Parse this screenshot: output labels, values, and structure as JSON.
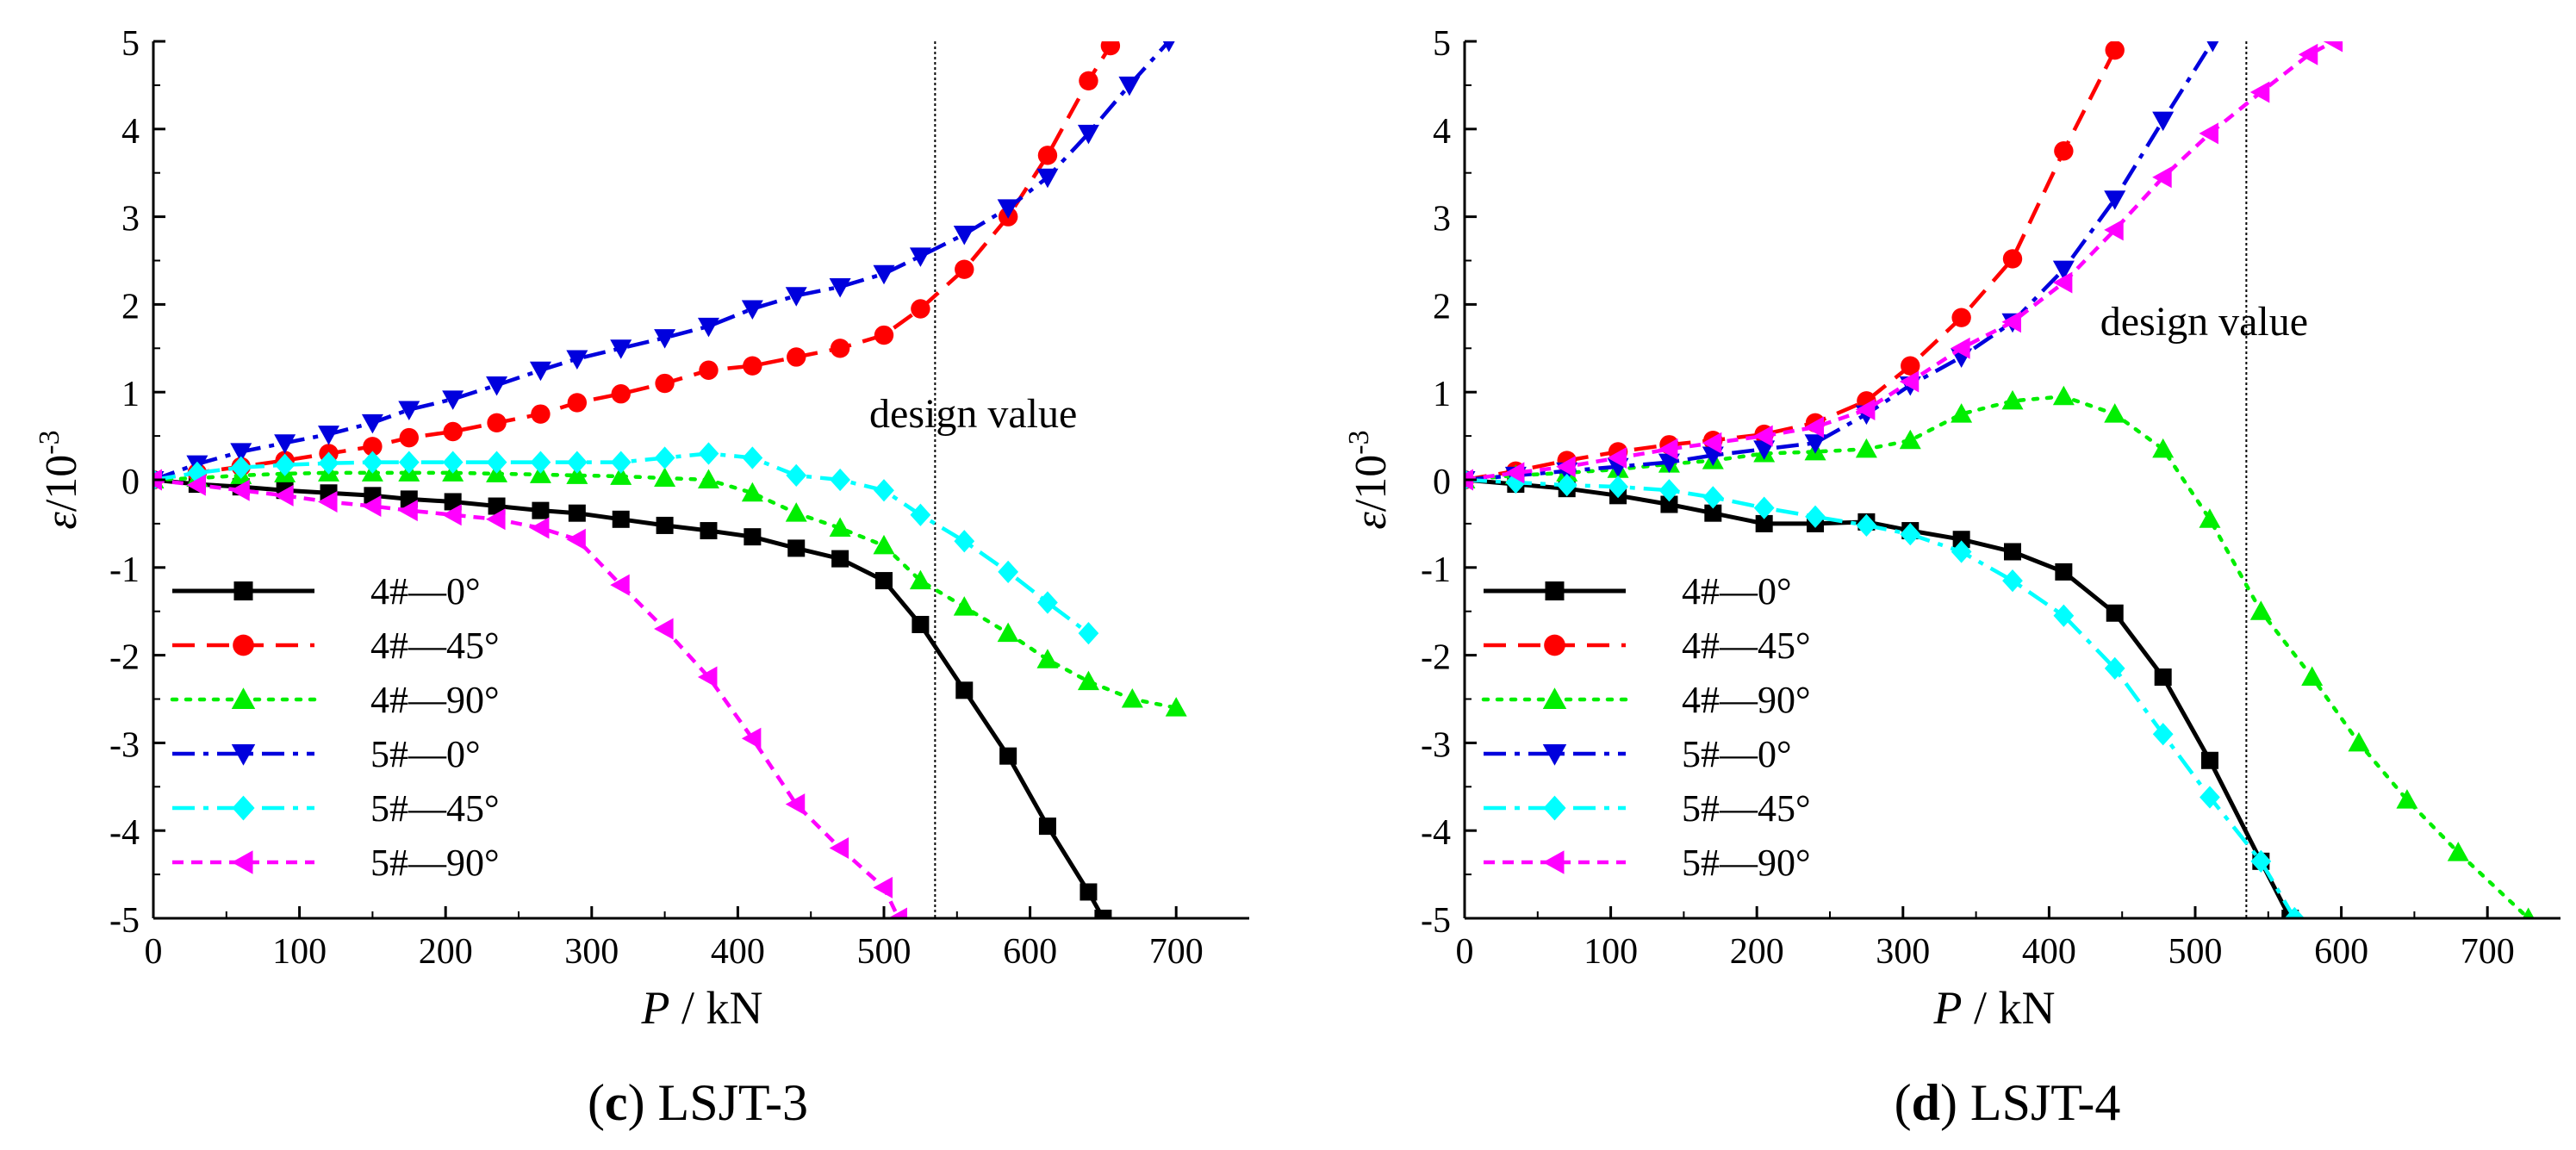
{
  "chart_data": [
    {
      "type": "line",
      "panel_letter": "c",
      "panel_name": "LSJT-3",
      "xlabel_italic": "P",
      "xlabel_unit": " / kN",
      "ylabel_symbol": "ε",
      "ylabel_unit": "/10",
      "ylabel_exp": "-3",
      "xlim": [
        0,
        750
      ],
      "ylim": [
        -5,
        5
      ],
      "x_ticks": [
        0,
        100,
        200,
        300,
        400,
        500,
        600,
        700
      ],
      "x_tick_labels": [
        "0",
        "100",
        "200",
        "300",
        "400",
        "500",
        "600",
        "700"
      ],
      "y_ticks": [
        -5,
        -4,
        -3,
        -2,
        -1,
        0,
        1,
        2,
        3,
        4,
        5
      ],
      "y_tick_labels": [
        "-5",
        "-4",
        "-3",
        "-2",
        "-1",
        "0",
        "1",
        "2",
        "3",
        "4",
        "5"
      ],
      "design_line_x": 535,
      "annotation": {
        "text": "design value",
        "x": 490,
        "y": 0.6
      },
      "legend_position": "bottom-left",
      "series": [
        {
          "name": "4#—0°",
          "color": "#000000",
          "dash": "solid",
          "marker": "square",
          "x": [
            0,
            30,
            60,
            90,
            120,
            150,
            175,
            205,
            235,
            265,
            290,
            320,
            350,
            380,
            410,
            440,
            470,
            500,
            525,
            555,
            585,
            612,
            640,
            650
          ],
          "y": [
            0,
            -0.05,
            -0.08,
            -0.12,
            -0.15,
            -0.18,
            -0.22,
            -0.25,
            -0.3,
            -0.35,
            -0.38,
            -0.45,
            -0.52,
            -0.58,
            -0.65,
            -0.78,
            -0.9,
            -1.15,
            -1.65,
            -2.4,
            -3.15,
            -3.95,
            -4.7,
            -5.0
          ]
        },
        {
          "name": "4#—45°",
          "color": "#ff0000",
          "dash": "long-dash",
          "marker": "circle",
          "x": [
            0,
            30,
            60,
            90,
            120,
            150,
            175,
            205,
            235,
            265,
            290,
            320,
            350,
            380,
            410,
            440,
            470,
            500,
            525,
            555,
            585,
            612,
            640,
            655
          ],
          "y": [
            0,
            0.08,
            0.15,
            0.22,
            0.3,
            0.38,
            0.48,
            0.55,
            0.65,
            0.75,
            0.88,
            0.98,
            1.1,
            1.25,
            1.3,
            1.4,
            1.5,
            1.65,
            1.95,
            2.4,
            3.0,
            3.7,
            4.55,
            4.95
          ]
        },
        {
          "name": "4#—90°",
          "color": "#00ee00",
          "dash": "dotted",
          "marker": "triangle-up",
          "x": [
            0,
            30,
            60,
            90,
            120,
            150,
            175,
            205,
            235,
            265,
            290,
            320,
            350,
            380,
            410,
            440,
            470,
            500,
            525,
            555,
            585,
            612,
            640,
            670,
            700
          ],
          "y": [
            0,
            0.02,
            0.05,
            0.07,
            0.08,
            0.08,
            0.08,
            0.08,
            0.07,
            0.06,
            0.05,
            0.04,
            0.02,
            0.0,
            -0.15,
            -0.38,
            -0.55,
            -0.75,
            -1.15,
            -1.45,
            -1.75,
            -2.05,
            -2.3,
            -2.5,
            -2.6
          ]
        },
        {
          "name": "5#—0°",
          "color": "#0000dd",
          "dash": "dash-dot",
          "marker": "triangle-down",
          "x": [
            0,
            30,
            60,
            90,
            120,
            150,
            175,
            205,
            235,
            265,
            290,
            320,
            350,
            380,
            410,
            440,
            470,
            500,
            525,
            555,
            585,
            612,
            640,
            668,
            695
          ],
          "y": [
            0,
            0.18,
            0.32,
            0.42,
            0.52,
            0.65,
            0.8,
            0.92,
            1.08,
            1.25,
            1.38,
            1.5,
            1.62,
            1.75,
            1.95,
            2.1,
            2.2,
            2.35,
            2.55,
            2.8,
            3.1,
            3.45,
            3.95,
            4.5,
            5.0
          ]
        },
        {
          "name": "5#—45°",
          "color": "#00ffff",
          "dash": "dash-dot",
          "marker": "diamond",
          "x": [
            0,
            30,
            60,
            90,
            120,
            150,
            175,
            205,
            235,
            265,
            290,
            320,
            350,
            380,
            410,
            440,
            470,
            500,
            525,
            555,
            585,
            612,
            640
          ],
          "y": [
            0,
            0.08,
            0.14,
            0.17,
            0.19,
            0.2,
            0.2,
            0.2,
            0.2,
            0.2,
            0.2,
            0.2,
            0.25,
            0.3,
            0.25,
            0.05,
            0.0,
            -0.12,
            -0.4,
            -0.7,
            -1.05,
            -1.4,
            -1.75
          ]
        },
        {
          "name": "5#—90°",
          "color": "#ff00ff",
          "dash": "short-dash",
          "marker": "triangle-left",
          "x": [
            0,
            30,
            60,
            90,
            120,
            150,
            175,
            205,
            235,
            265,
            290,
            320,
            350,
            380,
            410,
            440,
            470,
            500,
            510
          ],
          "y": [
            0,
            -0.06,
            -0.12,
            -0.18,
            -0.25,
            -0.3,
            -0.35,
            -0.4,
            -0.45,
            -0.55,
            -0.68,
            -1.2,
            -1.7,
            -2.25,
            -2.95,
            -3.7,
            -4.2,
            -4.65,
            -5.0
          ]
        }
      ]
    },
    {
      "type": "line",
      "panel_letter": "d",
      "panel_name": "LSJT-4",
      "xlabel_italic": "P",
      "xlabel_unit": " / kN",
      "ylabel_symbol": "ε",
      "ylabel_unit": "/10",
      "ylabel_exp": "-3",
      "xlim": [
        0,
        750
      ],
      "ylim": [
        -5,
        5
      ],
      "x_ticks": [
        0,
        100,
        200,
        300,
        400,
        500,
        600,
        700
      ],
      "x_tick_labels": [
        "0",
        "100",
        "200",
        "300",
        "400",
        "500",
        "600",
        "700"
      ],
      "y_ticks": [
        -5,
        -4,
        -3,
        -2,
        -1,
        0,
        1,
        2,
        3,
        4,
        5
      ],
      "y_tick_labels": [
        "-5",
        "-4",
        "-3",
        "-2",
        "-1",
        "0",
        "1",
        "2",
        "3",
        "4",
        "5"
      ],
      "design_line_x": 535,
      "annotation": {
        "text": "design value",
        "x": 435,
        "y": 1.65
      },
      "legend_position": "bottom-left",
      "series": [
        {
          "name": "4#—0°",
          "color": "#000000",
          "dash": "solid",
          "marker": "square",
          "x": [
            0,
            35,
            70,
            105,
            140,
            170,
            205,
            240,
            275,
            305,
            340,
            375,
            410,
            445,
            478,
            510,
            545,
            565
          ],
          "y": [
            0,
            -0.05,
            -0.1,
            -0.18,
            -0.28,
            -0.38,
            -0.5,
            -0.5,
            -0.48,
            -0.58,
            -0.68,
            -0.82,
            -1.05,
            -1.52,
            -2.25,
            -3.2,
            -4.35,
            -5.0
          ]
        },
        {
          "name": "4#—45°",
          "color": "#ff0000",
          "dash": "long-dash",
          "marker": "circle",
          "x": [
            0,
            35,
            70,
            105,
            140,
            170,
            205,
            240,
            275,
            305,
            340,
            375,
            410,
            445
          ],
          "y": [
            0,
            0.1,
            0.22,
            0.32,
            0.4,
            0.45,
            0.52,
            0.65,
            0.9,
            1.3,
            1.85,
            2.52,
            3.75,
            4.9
          ]
        },
        {
          "name": "4#—90°",
          "color": "#00ee00",
          "dash": "dotted",
          "marker": "triangle-up",
          "x": [
            0,
            35,
            70,
            105,
            140,
            170,
            205,
            240,
            275,
            305,
            340,
            375,
            410,
            445,
            478,
            510,
            545,
            580,
            612,
            645,
            680,
            728
          ],
          "y": [
            0,
            0.05,
            0.08,
            0.12,
            0.18,
            0.22,
            0.3,
            0.32,
            0.35,
            0.45,
            0.75,
            0.9,
            0.95,
            0.75,
            0.35,
            -0.45,
            -1.5,
            -2.25,
            -3.0,
            -3.65,
            -4.25,
            -5.0
          ]
        },
        {
          "name": "5#—0°",
          "color": "#0000dd",
          "dash": "dash-dot",
          "marker": "triangle-down",
          "x": [
            0,
            35,
            70,
            105,
            140,
            170,
            205,
            240,
            275,
            305,
            340,
            375,
            410,
            445,
            478,
            512
          ],
          "y": [
            0,
            0.05,
            0.1,
            0.15,
            0.2,
            0.28,
            0.35,
            0.42,
            0.75,
            1.08,
            1.4,
            1.8,
            2.4,
            3.2,
            4.1,
            5.0
          ]
        },
        {
          "name": "5#—45°",
          "color": "#00ffff",
          "dash": "dash-dot",
          "marker": "diamond",
          "x": [
            0,
            35,
            70,
            105,
            140,
            170,
            205,
            240,
            275,
            305,
            340,
            375,
            410,
            445,
            478,
            510,
            545,
            568
          ],
          "y": [
            0,
            -0.03,
            -0.06,
            -0.08,
            -0.12,
            -0.2,
            -0.32,
            -0.42,
            -0.52,
            -0.62,
            -0.82,
            -1.15,
            -1.55,
            -2.15,
            -2.9,
            -3.62,
            -4.35,
            -5.0
          ]
        },
        {
          "name": "5#—90°",
          "color": "#ff00ff",
          "dash": "short-dash",
          "marker": "triangle-left",
          "x": [
            0,
            35,
            70,
            105,
            140,
            170,
            205,
            240,
            275,
            305,
            340,
            375,
            410,
            445,
            478,
            510,
            545,
            578,
            595
          ],
          "y": [
            0,
            0.08,
            0.15,
            0.25,
            0.35,
            0.42,
            0.5,
            0.6,
            0.8,
            1.12,
            1.5,
            1.8,
            2.25,
            2.85,
            3.45,
            3.95,
            4.42,
            4.85,
            5.0
          ]
        }
      ]
    }
  ]
}
